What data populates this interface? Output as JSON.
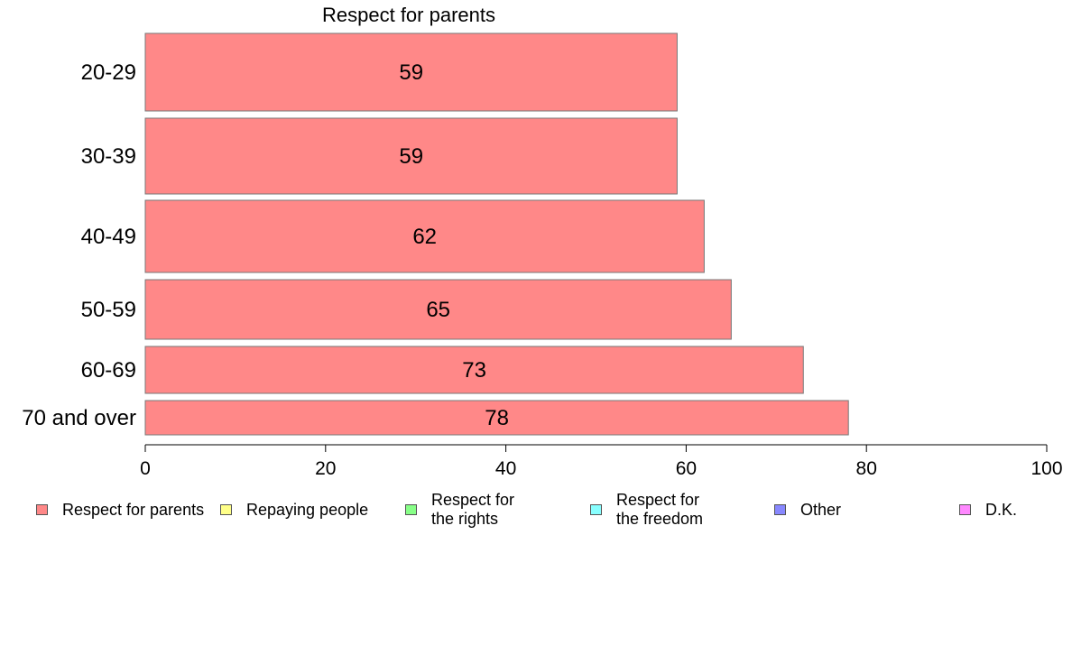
{
  "chart_data": {
    "type": "bar",
    "orientation": "horizontal",
    "title": "Respect for parents",
    "categories": [
      "20-29",
      "30-39",
      "40-49",
      "50-59",
      "60-69",
      "70 and over"
    ],
    "series": [
      {
        "name": "Respect for parents",
        "values": [
          59,
          59,
          62,
          65,
          73,
          78
        ],
        "color": "#ff8888"
      }
    ],
    "data_labels": [
      "59",
      "59",
      "62",
      "65",
      "73",
      "78"
    ],
    "xlim": [
      0,
      100
    ],
    "x_ticks": [
      0,
      20,
      40,
      60,
      80,
      100
    ],
    "x_tick_labels": [
      "0",
      "20",
      "40",
      "60",
      "80",
      "100"
    ],
    "xlabel": "",
    "ylabel": "",
    "grid": false,
    "legend_position": "bottom"
  },
  "legend": [
    {
      "label": "Respect for parents",
      "color": "#ff8888"
    },
    {
      "label": "Repaying people",
      "color": "#ffff88"
    },
    {
      "label": "Respect for\nthe rights",
      "color": "#88ff88"
    },
    {
      "label": "Respect for\nthe freedom",
      "color": "#88ffff"
    },
    {
      "label": "Other",
      "color": "#8888ff"
    },
    {
      "label": "D.K.",
      "color": "#ff88ff"
    }
  ]
}
